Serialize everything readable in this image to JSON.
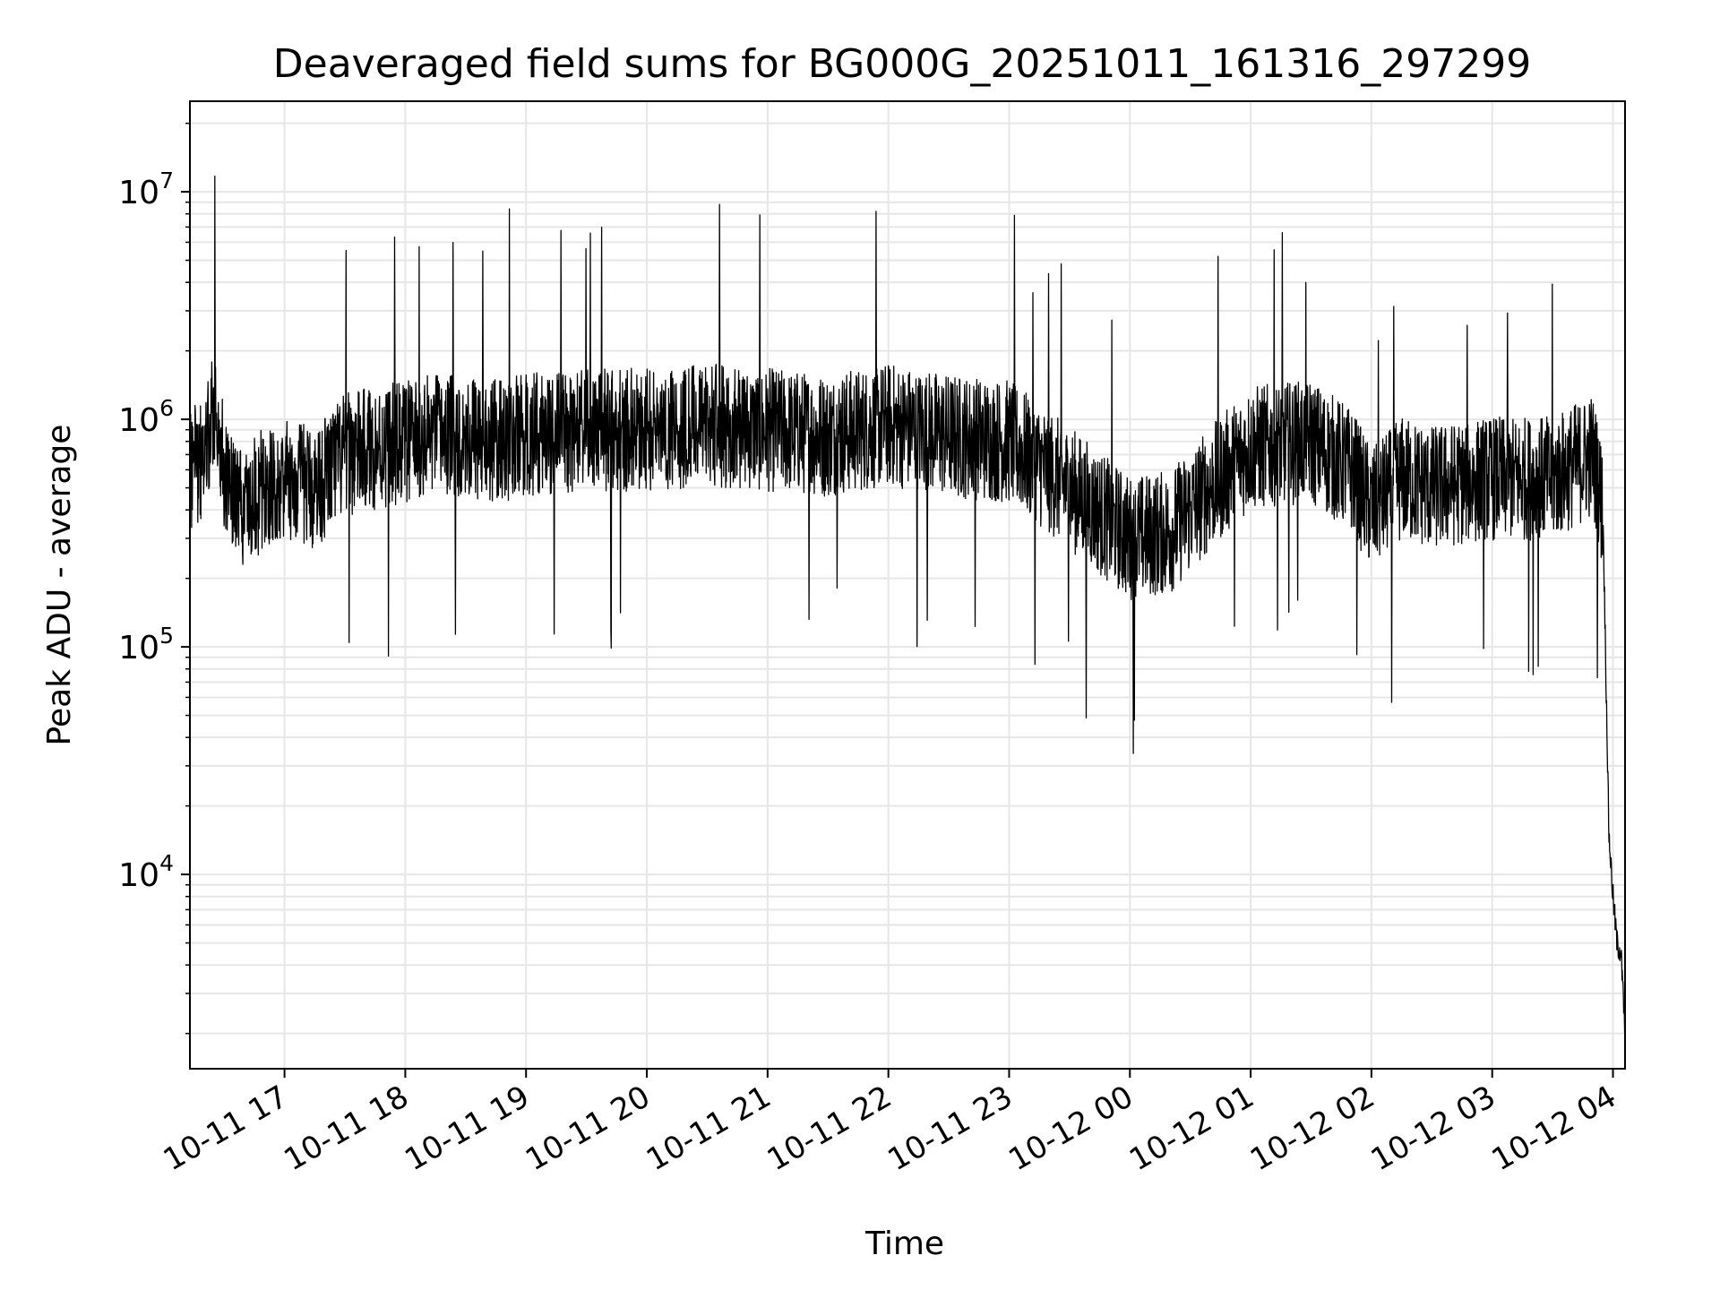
{
  "chart_data": {
    "type": "line",
    "title": "Deaveraged field sums for BG000G_20251011_161316_297299",
    "xlabel": "Time",
    "ylabel": "Peak ADU - average",
    "y_scale": "log",
    "xlim": [
      "2025-10-11 16:13",
      "2025-10-12 04:06"
    ],
    "ylim": [
      1400,
      25000000
    ],
    "grid": true,
    "line_color": "#000000",
    "grid_color": "#e6e6e6",
    "x_ticks": [
      "10-11 17",
      "10-11 18",
      "10-11 19",
      "10-11 20",
      "10-11 21",
      "10-11 22",
      "10-11 23",
      "10-12 00",
      "10-12 01",
      "10-12 02",
      "10-12 03",
      "10-12 04"
    ],
    "y_ticks": [
      {
        "base": "10",
        "exp": "4",
        "value": 10000
      },
      {
        "base": "10",
        "exp": "5",
        "value": 100000
      },
      {
        "base": "10",
        "exp": "6",
        "value": 1000000
      },
      {
        "base": "10",
        "exp": "7",
        "value": 10000000
      }
    ],
    "series": [
      {
        "x": [
          "2025-10-11 16:13",
          "2025-10-11 16:20",
          "2025-10-11 16:25",
          "2025-10-11 16:30",
          "2025-10-11 16:40",
          "2025-10-11 16:50",
          "2025-10-11 17:00",
          "2025-10-11 17:15",
          "2025-10-11 17:30",
          "2025-10-11 17:45",
          "2025-10-11 18:00",
          "2025-10-11 18:15",
          "2025-10-11 18:30",
          "2025-10-11 18:45",
          "2025-10-11 19:00",
          "2025-10-11 19:30",
          "2025-10-11 20:00",
          "2025-10-11 20:30",
          "2025-10-11 21:00",
          "2025-10-11 21:30",
          "2025-10-11 22:00",
          "2025-10-11 22:30",
          "2025-10-11 23:00",
          "2025-10-11 23:30",
          "2025-10-12 00:00",
          "2025-10-12 00:20",
          "2025-10-12 00:40",
          "2025-10-12 01:00",
          "2025-10-12 01:30",
          "2025-10-12 01:50",
          "2025-10-12 02:00",
          "2025-10-12 02:15",
          "2025-10-12 02:30",
          "2025-10-12 03:00",
          "2025-10-12 03:30",
          "2025-10-12 03:50",
          "2025-10-12 03:55",
          "2025-10-12 03:58",
          "2025-10-12 04:00",
          "2025-10-12 04:02",
          "2025-10-12 04:04",
          "2025-10-12 04:06"
        ],
        "y": [
          600000,
          700000,
          1200000,
          600000,
          400000,
          500000,
          550000,
          500000,
          700000,
          750000,
          800000,
          850000,
          850000,
          800000,
          850000,
          900000,
          900000,
          950000,
          900000,
          850000,
          950000,
          850000,
          800000,
          500000,
          300000,
          320000,
          500000,
          750000,
          800000,
          600000,
          400000,
          550000,
          500000,
          550000,
          550000,
          700000,
          400000,
          15000,
          8000,
          5000,
          4500,
          2000
        ]
      }
    ]
  }
}
